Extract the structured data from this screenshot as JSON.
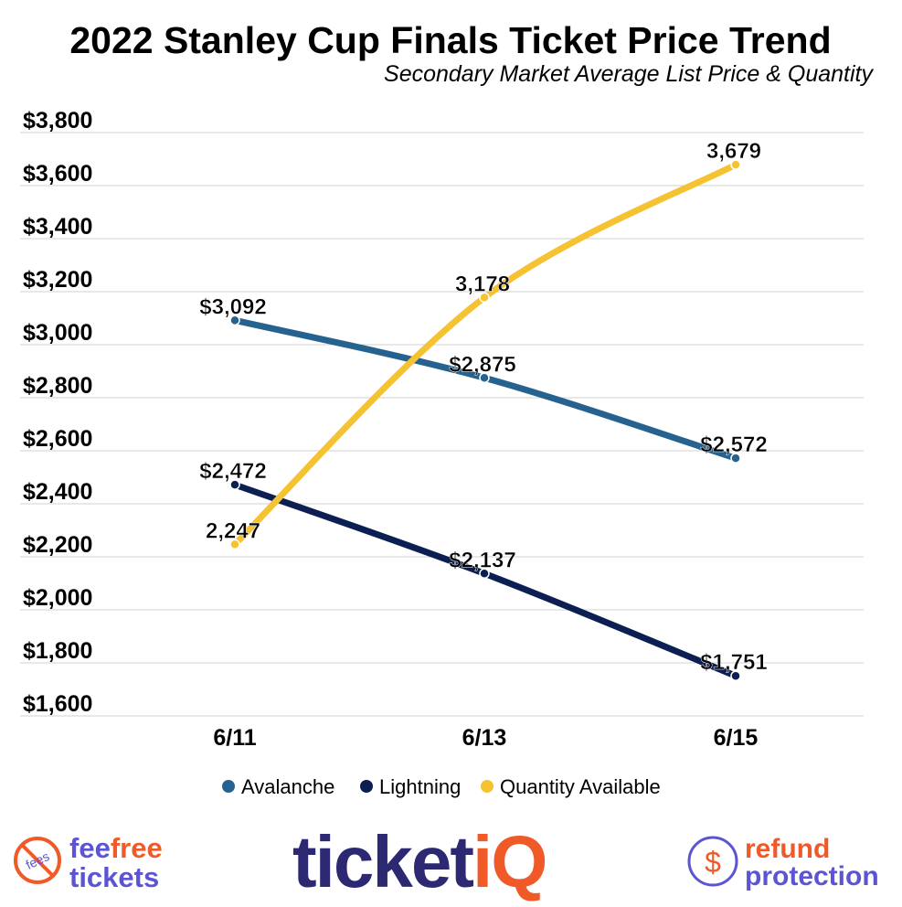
{
  "chart_data": {
    "type": "line",
    "title": "2022 Stanley Cup Finals Ticket Price Trend",
    "subtitle": "Secondary Market Average List Price & Quantity",
    "categories": [
      "6/11",
      "6/13",
      "6/15"
    ],
    "ylim": [
      1600,
      3800
    ],
    "yticks": [
      1600,
      1800,
      2000,
      2200,
      2400,
      2600,
      2800,
      3000,
      3200,
      3400,
      3600,
      3800
    ],
    "ytick_labels": [
      "$1,600",
      "$1,800",
      "$2,000",
      "$2,200",
      "$2,400",
      "$2,600",
      "$2,800",
      "$3,000",
      "$3,200",
      "$3,400",
      "$3,600",
      "$3,800"
    ],
    "grid": true,
    "legend_position": "bottom",
    "series": [
      {
        "name": "Avalanche",
        "color": "#26628f",
        "values": [
          3092,
          2875,
          2572
        ],
        "labels": [
          "$3,092",
          "$2,875",
          "$2,572"
        ]
      },
      {
        "name": "Lightning",
        "color": "#0b1f52",
        "values": [
          2472,
          2137,
          1751
        ],
        "labels": [
          "$2,472",
          "$2,137",
          "$1,751"
        ]
      },
      {
        "name": "Quantity Available",
        "color": "#f5c232",
        "values": [
          2247,
          3178,
          3679
        ],
        "labels": [
          "2,247",
          "3,178",
          "3,679"
        ]
      }
    ]
  },
  "footer": {
    "left_logo": {
      "word1": "fee",
      "word2": "free",
      "word3": "tickets",
      "badge": "fees"
    },
    "center_logo": {
      "part1": "ticket",
      "part2": "iQ"
    },
    "right_logo": {
      "word1": "refund",
      "word2": "protection",
      "symbol": "$"
    },
    "colors": {
      "purple": "#5b55d4",
      "orange": "#f05a28",
      "navy": "#2c2872"
    }
  }
}
